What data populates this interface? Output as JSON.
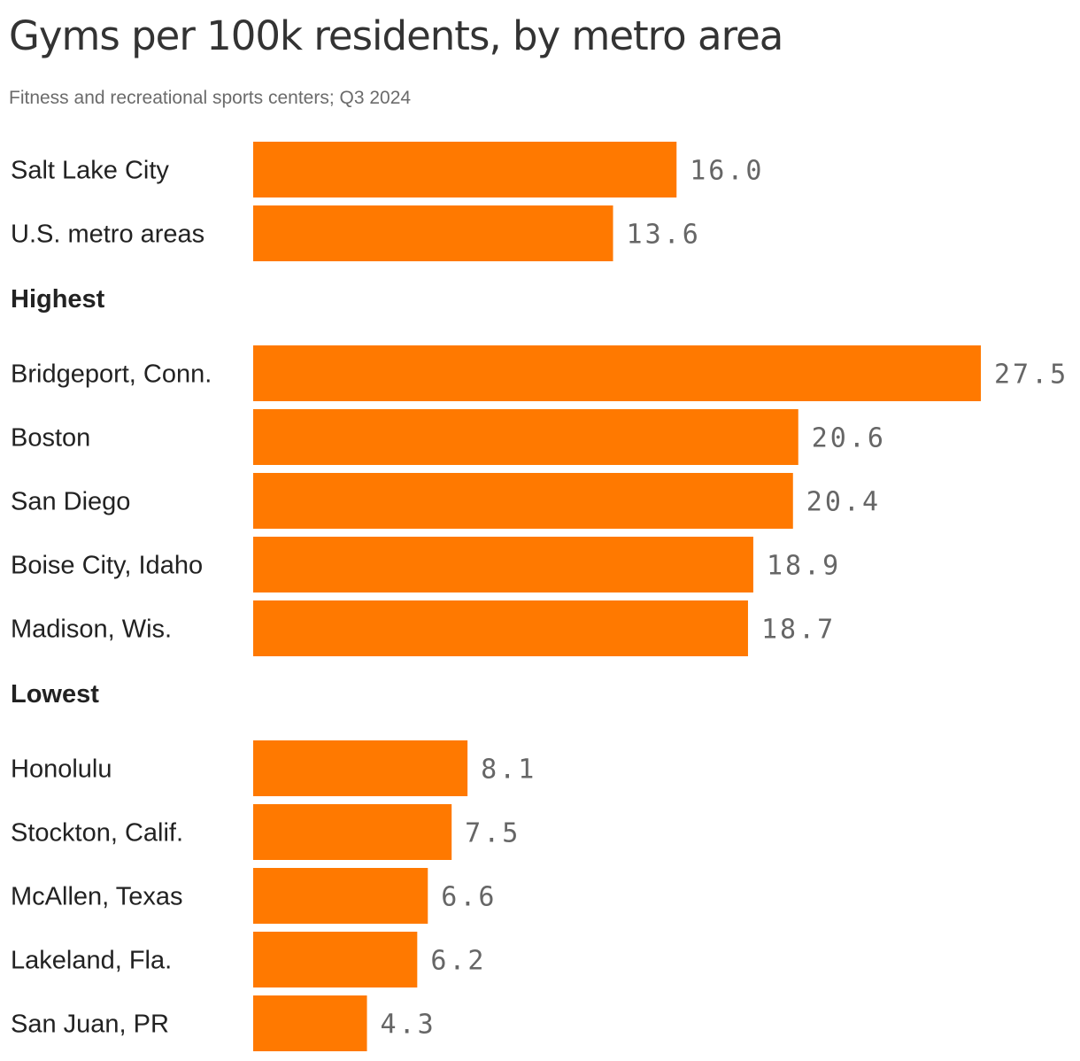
{
  "header": {
    "title": "Gyms per 100k residents, by metro area",
    "subtitle": "Fitness and recreational sports centers; Q3 2024"
  },
  "colors": {
    "bar": "#ff7900",
    "label": "#222222",
    "value": "#666666"
  },
  "chart_data": {
    "type": "bar",
    "orientation": "horizontal",
    "title": "Gyms per 100k residents, by metro area",
    "subtitle": "Fitness and recreational sports centers; Q3 2024",
    "xlim": [
      0,
      27.5
    ],
    "grid": false,
    "groups": [
      {
        "heading": "",
        "categories": [
          "Salt Lake City",
          "U.S. metro areas"
        ],
        "values": [
          16.0,
          13.6
        ],
        "labels": [
          "16.0",
          "13.6"
        ]
      },
      {
        "heading": "Highest",
        "categories": [
          "Bridgeport, Conn.",
          "Boston",
          "San Diego",
          "Boise City, Idaho",
          "Madison, Wis."
        ],
        "values": [
          27.5,
          20.6,
          20.4,
          18.9,
          18.7
        ],
        "labels": [
          "27.5",
          "20.6",
          "20.4",
          "18.9",
          "18.7"
        ]
      },
      {
        "heading": "Lowest",
        "categories": [
          "Honolulu",
          "Stockton, Calif.",
          "McAllen, Texas",
          "Lakeland, Fla.",
          "San Juan, PR"
        ],
        "values": [
          8.1,
          7.5,
          6.6,
          6.2,
          4.3
        ],
        "labels": [
          "8.1",
          "7.5",
          "6.6",
          "6.2",
          "4.3"
        ]
      }
    ]
  }
}
